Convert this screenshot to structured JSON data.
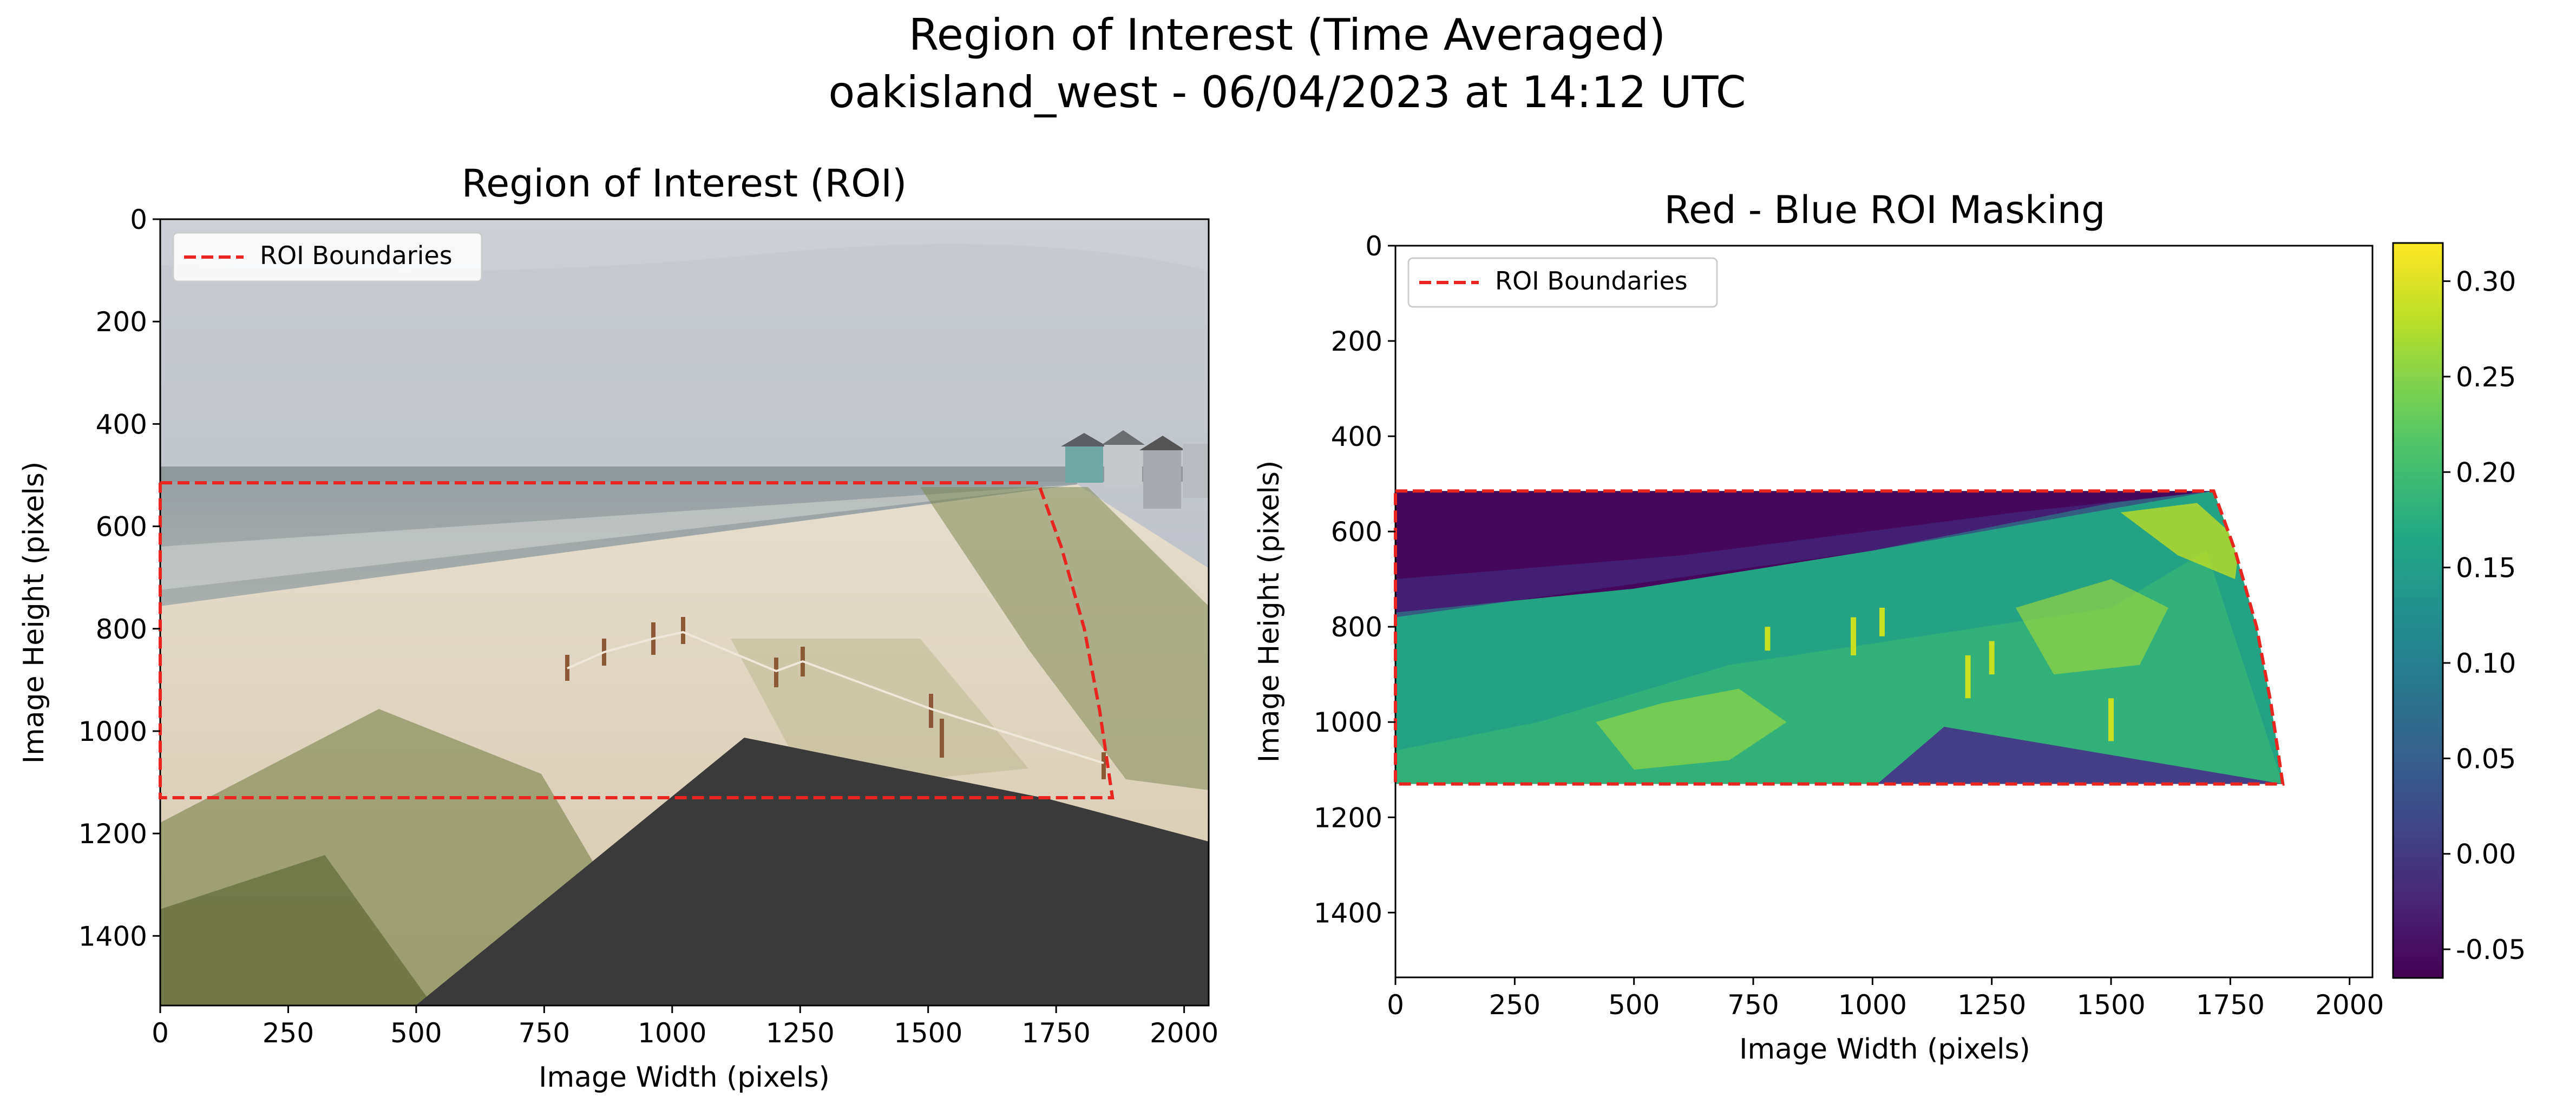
{
  "figure": {
    "title_line1": "Region of Interest (Time Averaged)",
    "title_line2": "oakisland_west - 06/04/2023 at 14:12 UTC"
  },
  "chart_data": [
    {
      "type": "image",
      "title": "Region of Interest (ROI)",
      "xlabel": "Image Width (pixels)",
      "ylabel": "Image Height (pixels)",
      "xlim": [
        0,
        2048
      ],
      "ylim": [
        1536,
        0
      ],
      "xticks": [
        0,
        250,
        500,
        750,
        1000,
        1250,
        1500,
        1750,
        2000
      ],
      "yticks": [
        0,
        200,
        400,
        600,
        800,
        1000,
        1200,
        1400
      ],
      "legend": {
        "label": "ROI Boundaries",
        "location": "upper left"
      },
      "roi_boundary": {
        "style": "red dashed",
        "color": "#e8251f",
        "points": [
          [
            0,
            515
          ],
          [
            1715,
            515
          ],
          [
            1760,
            640
          ],
          [
            1805,
            800
          ],
          [
            1835,
            960
          ],
          [
            1860,
            1130
          ],
          [
            0,
            1130
          ]
        ]
      },
      "image_description": "beach camera view: overcast sky, ocean, sandy beach and dunes with fencing, houses at right, dark gray masked deck polygon at bottom"
    },
    {
      "type": "heatmap",
      "title": "Red - Blue ROI Masking",
      "xlabel": "Image Width (pixels)",
      "ylabel": "Image Height (pixels)",
      "xlim": [
        0,
        2048
      ],
      "ylim": [
        1536,
        0
      ],
      "xticks": [
        0,
        250,
        500,
        750,
        1000,
        1250,
        1500,
        1750,
        2000
      ],
      "yticks": [
        0,
        200,
        400,
        600,
        800,
        1000,
        1200,
        1400
      ],
      "legend": {
        "label": "ROI Boundaries",
        "location": "upper left"
      },
      "colormap": "viridis",
      "colorbar": {
        "range": [
          -0.065,
          0.32
        ],
        "ticks": [
          "-0.05",
          "0.00",
          "0.05",
          "0.10",
          "0.15",
          "0.20",
          "0.25",
          "0.30"
        ]
      },
      "roi_boundary": {
        "style": "red dashed",
        "color": "#e8251f",
        "points": [
          [
            0,
            515
          ],
          [
            1715,
            515
          ],
          [
            1760,
            640
          ],
          [
            1805,
            800
          ],
          [
            1835,
            960
          ],
          [
            1860,
            1130
          ],
          [
            0,
            1130
          ]
        ]
      },
      "regions": [
        {
          "name": "water",
          "approx_value": -0.055
        },
        {
          "name": "beach/dune",
          "approx_value": 0.15
        },
        {
          "name": "vegetation highlights",
          "approx_value": 0.27
        },
        {
          "name": "masked deck",
          "approx_value": -0.02
        }
      ]
    }
  ]
}
